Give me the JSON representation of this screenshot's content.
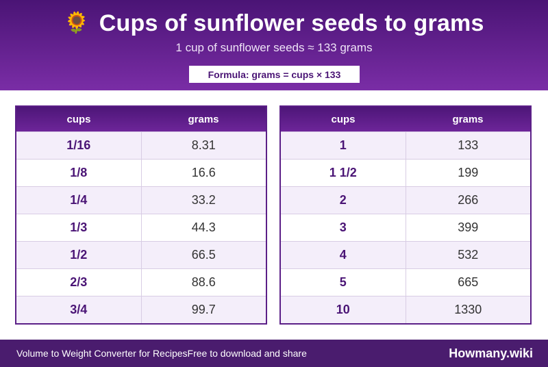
{
  "header": {
    "icon": "sunflower-icon",
    "icon_glyph": "🌻",
    "title": "Cups of sunflower seeds to grams",
    "subtitle": "1 cup of sunflower seeds ≈ 133 grams",
    "formula": "Formula: grams = cups × 133"
  },
  "tables": [
    {
      "headers": [
        "cups",
        "grams"
      ],
      "rows": [
        {
          "cups": "1/16",
          "grams": "8.31"
        },
        {
          "cups": "1/8",
          "grams": "16.6"
        },
        {
          "cups": "1/4",
          "grams": "33.2"
        },
        {
          "cups": "1/3",
          "grams": "44.3"
        },
        {
          "cups": "1/2",
          "grams": "66.5"
        },
        {
          "cups": "2/3",
          "grams": "88.6"
        },
        {
          "cups": "3/4",
          "grams": "99.7"
        }
      ]
    },
    {
      "headers": [
        "cups",
        "grams"
      ],
      "rows": [
        {
          "cups": "1",
          "grams": "133"
        },
        {
          "cups": "1 1/2",
          "grams": "199"
        },
        {
          "cups": "2",
          "grams": "266"
        },
        {
          "cups": "3",
          "grams": "399"
        },
        {
          "cups": "4",
          "grams": "532"
        },
        {
          "cups": "5",
          "grams": "665"
        },
        {
          "cups": "10",
          "grams": "1330"
        }
      ]
    }
  ],
  "footer": {
    "left_text": "Volume to Weight Converter for Recipes",
    "middle_text": "Free to download and share",
    "brand": "Howmany.wiki"
  },
  "colors": {
    "header_top": "#4a1475",
    "header_bottom": "#7a2da6",
    "accent": "#4a1475",
    "row_alt": "#f4eefa",
    "footer_bg": "#4a1c6e"
  }
}
